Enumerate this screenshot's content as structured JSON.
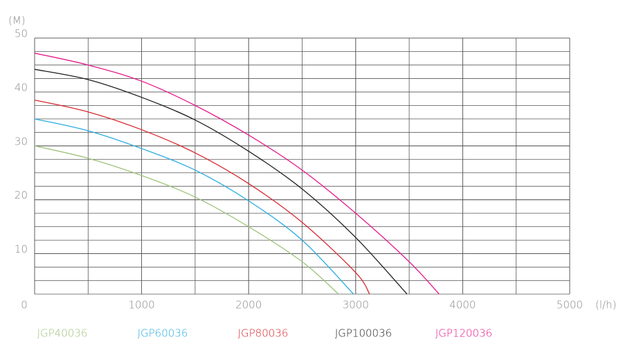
{
  "chart_data": {
    "type": "line",
    "y_unit": "(M)",
    "x_unit": "(l/h)",
    "xlim": [
      0,
      5000
    ],
    "ylim": [
      2.5,
      50
    ],
    "xticks": [
      0,
      1000,
      2000,
      3000,
      4000,
      5000
    ],
    "yticks": [
      10,
      20,
      30,
      40,
      50
    ],
    "x_grid_step": 500,
    "y_grid_step": 2.5,
    "grid": true,
    "legend": "bottom",
    "series": [
      {
        "name": "JGP40036",
        "color": "#9dc37a",
        "x": [
          0,
          500,
          1000,
          1500,
          2000,
          2500,
          2840
        ],
        "values": [
          30,
          27.7,
          24.5,
          20.5,
          15,
          8.5,
          2.5
        ]
      },
      {
        "name": "JGP60036",
        "color": "#29abe2",
        "x": [
          0,
          500,
          1000,
          1500,
          2000,
          2500,
          2980
        ],
        "values": [
          35,
          32.8,
          29.5,
          25.5,
          19.8,
          12.5,
          2.5
        ]
      },
      {
        "name": "JGP80036",
        "color": "#d7282f",
        "x": [
          0,
          500,
          1000,
          1500,
          2000,
          2500,
          3000,
          3130
        ],
        "values": [
          38.5,
          36.3,
          33,
          28.7,
          23,
          15.8,
          6.5,
          2.5
        ]
      },
      {
        "name": "JGP100036",
        "color": "#231f20",
        "x": [
          0,
          500,
          1000,
          1500,
          2000,
          2500,
          3000,
          3480
        ],
        "values": [
          44.2,
          42.3,
          39,
          34.8,
          29,
          22,
          13,
          2.5
        ]
      },
      {
        "name": "JGP120036",
        "color": "#e5198a",
        "x": [
          0,
          500,
          1000,
          1500,
          2000,
          2500,
          3000,
          3500,
          3780
        ],
        "values": [
          47.2,
          45,
          42,
          37.5,
          32,
          25.5,
          17.5,
          8.5,
          2.5
        ]
      }
    ]
  }
}
